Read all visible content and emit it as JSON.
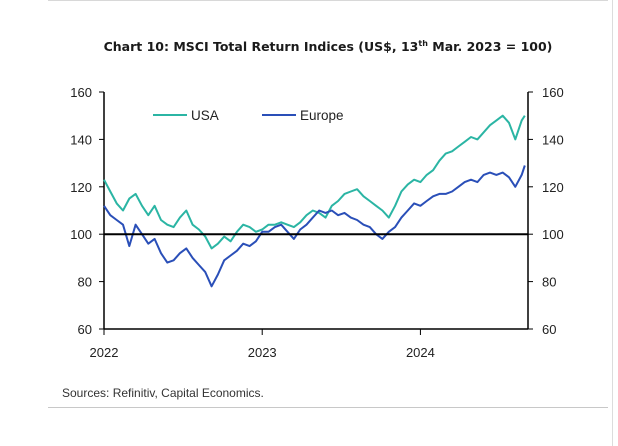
{
  "title": {
    "main": "Chart 10: MSCI Total Return Indices (US$, 13",
    "sup": "th",
    "rest": " Mar. 2023 = 100)"
  },
  "source": "Sources: Refinitiv, Capital Economics.",
  "colors": {
    "usa": "#2bb5a4",
    "europe": "#2a4fb8",
    "axis": "#000000",
    "refline": "#000000"
  },
  "chart_data": {
    "type": "line",
    "title": "Chart 10: MSCI Total Return Indices (US$, 13th Mar. 2023 = 100)",
    "xlabel": "",
    "ylabel": "",
    "ylim": [
      60,
      160
    ],
    "yticks": [
      60,
      80,
      100,
      120,
      140,
      160
    ],
    "xlim": [
      2022.0,
      2024.68
    ],
    "xticks": [
      {
        "x": 2022,
        "label": "2022"
      },
      {
        "x": 2023,
        "label": "2023"
      },
      {
        "x": 2024,
        "label": "2024"
      }
    ],
    "reference_line": 100,
    "legend": "top-left",
    "grid": false,
    "x": [
      2022.0,
      2022.04,
      2022.08,
      2022.12,
      2022.16,
      2022.2,
      2022.24,
      2022.28,
      2022.32,
      2022.36,
      2022.4,
      2022.44,
      2022.48,
      2022.52,
      2022.56,
      2022.6,
      2022.64,
      2022.68,
      2022.72,
      2022.76,
      2022.8,
      2022.84,
      2022.88,
      2022.92,
      2022.96,
      2023.0,
      2023.04,
      2023.08,
      2023.12,
      2023.16,
      2023.2,
      2023.24,
      2023.28,
      2023.32,
      2023.36,
      2023.4,
      2023.44,
      2023.48,
      2023.52,
      2023.56,
      2023.6,
      2023.64,
      2023.68,
      2023.72,
      2023.76,
      2023.8,
      2023.84,
      2023.88,
      2023.92,
      2023.96,
      2024.0,
      2024.04,
      2024.08,
      2024.12,
      2024.16,
      2024.2,
      2024.24,
      2024.28,
      2024.32,
      2024.36,
      2024.4,
      2024.44,
      2024.48,
      2024.52,
      2024.56,
      2024.6,
      2024.64,
      2024.66
    ],
    "series": [
      {
        "name": "USA",
        "values": [
          123,
          118,
          113,
          110,
          115,
          117,
          112,
          108,
          112,
          106,
          104,
          103,
          107,
          110,
          104,
          102,
          99,
          94,
          96,
          99,
          97,
          101,
          104,
          103,
          101,
          102,
          104,
          104,
          105,
          104,
          103,
          105,
          108,
          110,
          109,
          107,
          112,
          114,
          117,
          118,
          119,
          116,
          114,
          112,
          110,
          107,
          112,
          118,
          121,
          123,
          122,
          125,
          127,
          131,
          134,
          135,
          137,
          139,
          141,
          140,
          143,
          146,
          148,
          150,
          147,
          140,
          148,
          150
        ]
      },
      {
        "name": "Europe",
        "values": [
          112,
          108,
          106,
          104,
          95,
          104,
          100,
          96,
          98,
          92,
          88,
          89,
          92,
          94,
          90,
          87,
          84,
          78,
          83,
          89,
          91,
          93,
          96,
          95,
          97,
          101,
          101,
          103,
          104,
          101,
          98,
          102,
          104,
          107,
          110,
          109,
          110,
          108,
          109,
          107,
          106,
          104,
          103,
          100,
          98,
          101,
          103,
          107,
          110,
          113,
          112,
          114,
          116,
          117,
          117,
          118,
          120,
          122,
          123,
          122,
          125,
          126,
          125,
          126,
          124,
          120,
          125,
          129
        ]
      }
    ]
  }
}
